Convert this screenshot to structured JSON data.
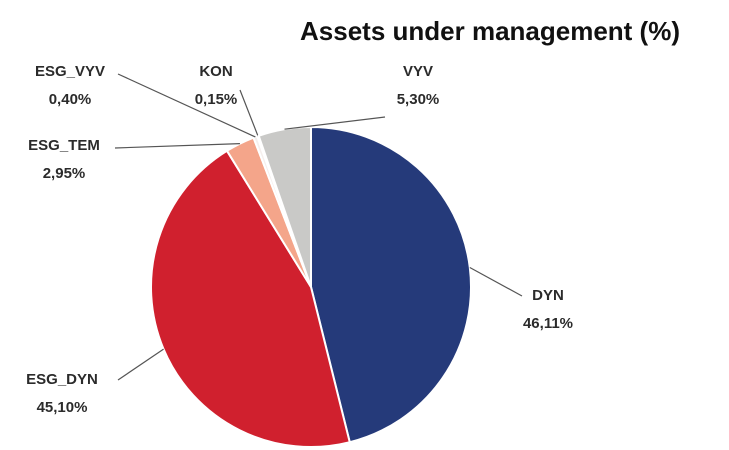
{
  "chart_data": {
    "type": "pie",
    "title": "Assets under management (%)",
    "categories": [
      "DYN",
      "ESG_DYN",
      "ESG_TEM",
      "ESG_VYV",
      "KON",
      "VYV"
    ],
    "values": [
      46.11,
      45.1,
      2.95,
      0.4,
      0.15,
      5.3
    ],
    "value_labels": [
      "46,11%",
      "45,10%",
      "2,95%",
      "0,40%",
      "0,15%",
      "5,30%"
    ],
    "colors": [
      "#253a7a",
      "#d0202e",
      "#f4a58a",
      "#f5efed",
      "#e6e6e6",
      "#c9c9c7"
    ]
  }
}
